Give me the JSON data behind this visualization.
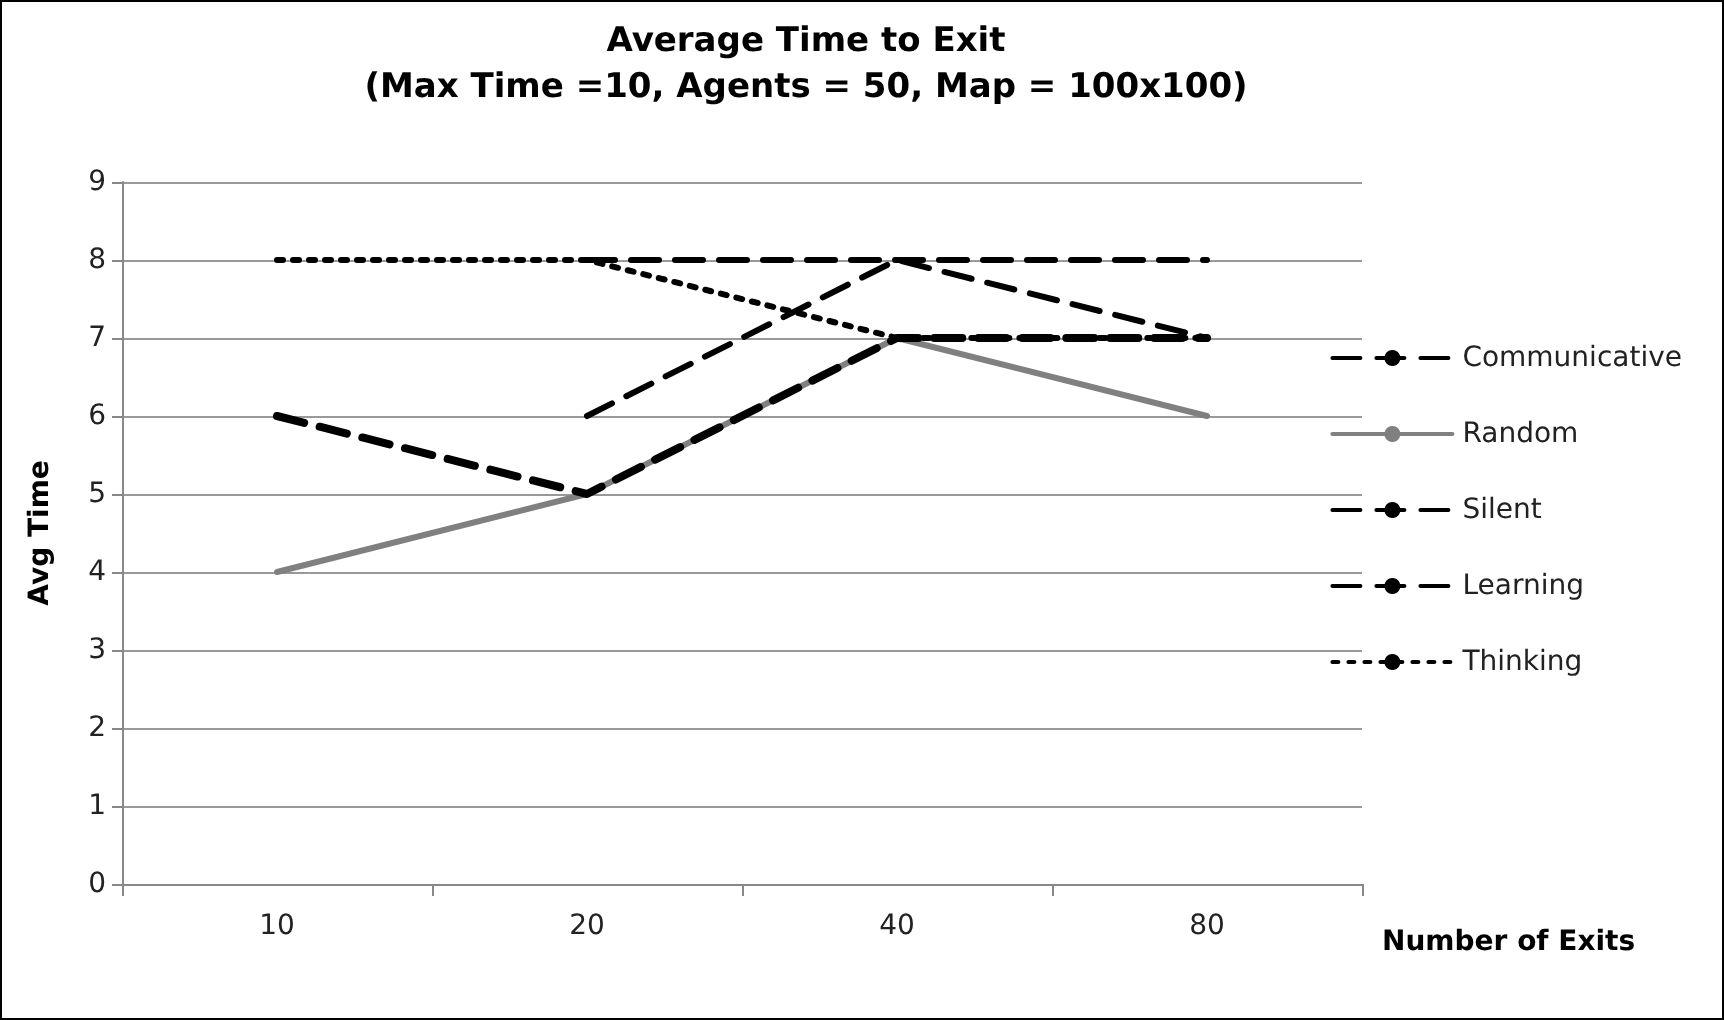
{
  "chart_data": {
    "type": "line",
    "title": "Average Time to Exit",
    "subtitle": "(Max Time =10, Agents = 50, Map = 100x100)",
    "xlabel": "Number of Exits",
    "ylabel": "Avg Time",
    "categories": [
      "10",
      "20",
      "40",
      "80"
    ],
    "ylim": [
      0,
      9
    ],
    "yticks": [
      0,
      1,
      2,
      3,
      4,
      5,
      6,
      7,
      8,
      9
    ],
    "grid": "y",
    "legend": "right",
    "marker": "none",
    "series": [
      {
        "name": "Communicative",
        "color": "#000000",
        "line_style": "dashed",
        "values": [
          null,
          8,
          8,
          8
        ]
      },
      {
        "name": "Random",
        "color": "#808080",
        "line_style": "solid",
        "values": [
          4,
          5,
          7,
          6
        ]
      },
      {
        "name": "Silent",
        "color": "#000000",
        "line_style": "dashed",
        "values": [
          6,
          5,
          7,
          7
        ]
      },
      {
        "name": "Learning",
        "color": "#000000",
        "line_style": "dashed",
        "values": [
          null,
          6,
          8,
          7
        ]
      },
      {
        "name": "Thinking",
        "color": "#000000",
        "line_style": "dotted",
        "values": [
          8,
          8,
          7,
          7
        ]
      }
    ]
  }
}
